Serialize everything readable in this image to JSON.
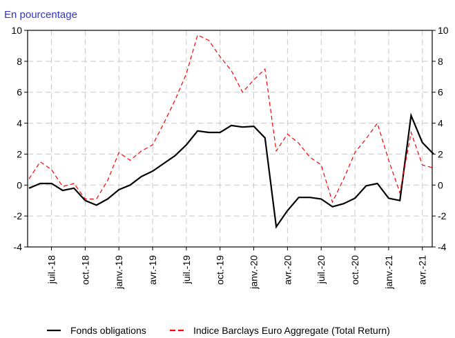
{
  "chart_data": {
    "type": "line",
    "subtitle": "En pourcentage",
    "categories": [
      null,
      null,
      "juil.-18",
      null,
      null,
      "oct.-18",
      null,
      null,
      "janv.-19",
      null,
      null,
      "avr.-19",
      null,
      null,
      "juil.-19",
      null,
      null,
      "oct.-19",
      null,
      null,
      "janv.-20",
      null,
      null,
      "avr.-20",
      null,
      null,
      "juil.-20",
      null,
      null,
      "oct.-20",
      null,
      null,
      "janv.-21",
      null,
      null,
      "avr.-21",
      null
    ],
    "series": [
      {
        "name": "Fonds obligations",
        "color": "#000000",
        "values": [
          -0.2,
          0.1,
          0.1,
          -0.35,
          -0.2,
          -1.0,
          -1.3,
          -0.9,
          -0.3,
          0.0,
          0.55,
          0.9,
          1.4,
          1.9,
          2.6,
          3.5,
          3.4,
          3.4,
          3.85,
          3.75,
          3.8,
          3.05,
          -2.7,
          -1.65,
          -0.8,
          -0.8,
          -0.9,
          -1.4,
          -1.2,
          -0.85,
          -0.05,
          0.1,
          -0.85,
          -1.0,
          4.5,
          2.75,
          2.0
        ]
      },
      {
        "name": "Indice Barclays Euro Aggregate (Total Return)",
        "color": "#ff0000",
        "values": [
          0.4,
          1.5,
          1.0,
          -0.1,
          0.1,
          -0.9,
          -0.9,
          0.3,
          2.1,
          1.6,
          2.2,
          2.6,
          4.0,
          5.5,
          7.2,
          9.7,
          9.35,
          8.3,
          7.4,
          6.0,
          6.8,
          7.5,
          2.2,
          3.3,
          2.7,
          1.8,
          1.3,
          -1.1,
          0.4,
          2.1,
          3.0,
          4.0,
          1.6,
          -0.5,
          3.4,
          1.3,
          1.1
        ]
      }
    ],
    "ylim": [
      -4,
      10
    ],
    "yticks": [
      -4,
      -2,
      0,
      2,
      4,
      6,
      8,
      10
    ],
    "y2lim": [
      -4,
      10
    ],
    "y2ticks": [
      -4,
      -2,
      0,
      2,
      4,
      6,
      8,
      10
    ],
    "grid": true,
    "legend": "bottom"
  }
}
